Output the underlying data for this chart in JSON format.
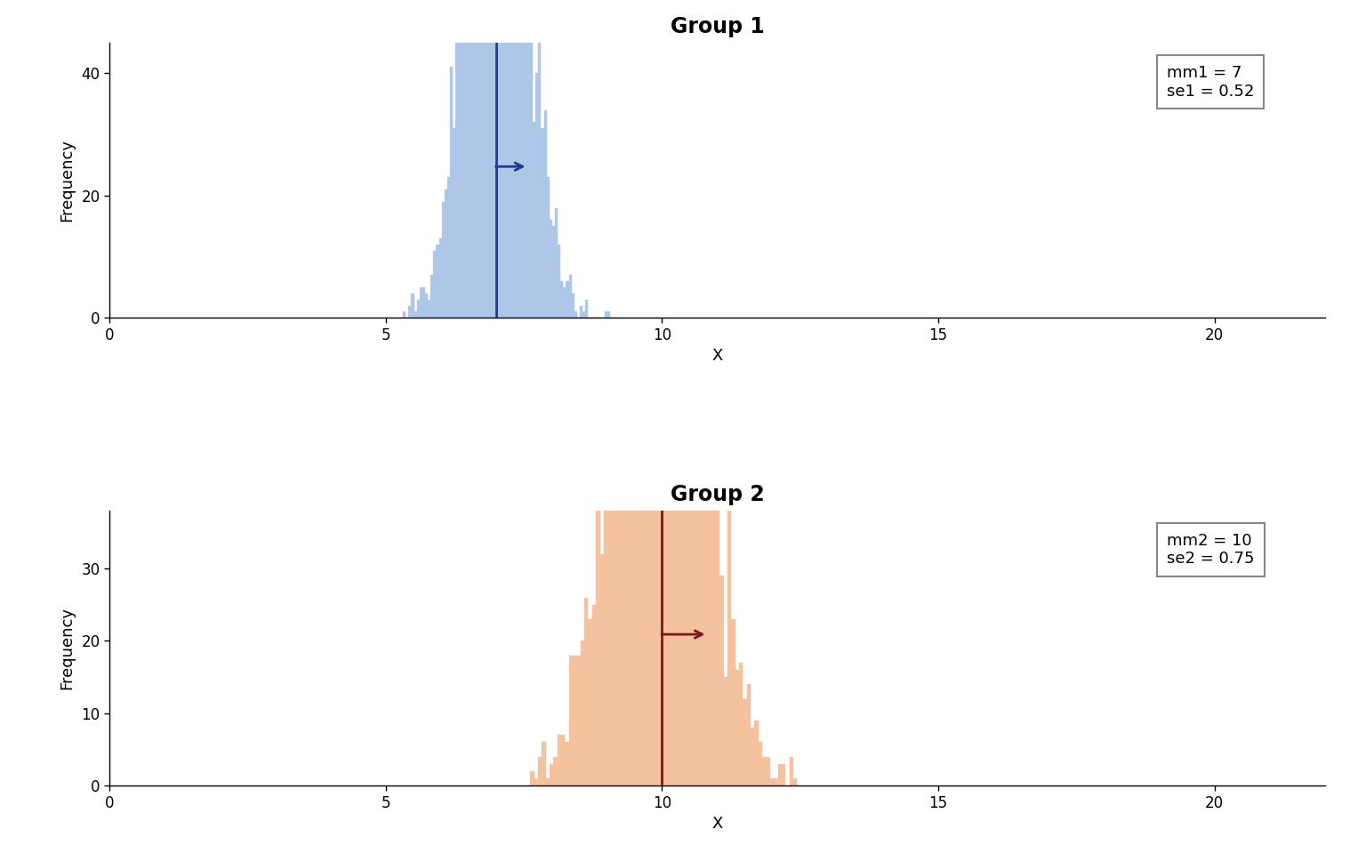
{
  "group1": {
    "title": "Group 1",
    "mean": 7.0,
    "se": 0.52,
    "mm_label": "mm1 = 7",
    "se_label": "se1 = 0.52",
    "hist_color": "#aec6e8",
    "line_color": "#1f3a8f",
    "arrow_color": "#1f3a8f",
    "ylim": [
      0,
      45
    ],
    "yticks": [
      0,
      20,
      40
    ],
    "n_samples": 3000,
    "bin_width": 0.05
  },
  "group2": {
    "title": "Group 2",
    "mean": 10.0,
    "se": 0.75,
    "mm_label": "mm2 = 10",
    "se_label": "se2 = 0.75",
    "hist_color": "#f5c2a0",
    "line_color": "#7b1a1a",
    "arrow_color": "#7b1a1a",
    "ylim": [
      0,
      38
    ],
    "yticks": [
      0,
      10,
      20,
      30
    ],
    "n_samples": 3000,
    "bin_width": 0.07
  },
  "xlim": [
    0,
    22
  ],
  "xticks": [
    0,
    5,
    10,
    15,
    20
  ],
  "xlabel": "X",
  "ylabel": "Frequency",
  "bg_color": "#ffffff",
  "title_fontsize": 17,
  "label_fontsize": 13,
  "tick_fontsize": 12
}
